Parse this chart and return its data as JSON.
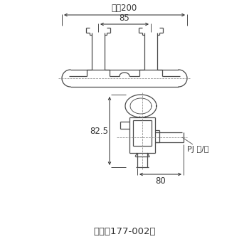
{
  "bg_color": "#ffffff",
  "line_color": "#4a4a4a",
  "dim_color": "#333333",
  "title": "（図は177-002）",
  "title_fontsize": 9.5,
  "dim_label_200": "最大200",
  "dim_label_85": "85",
  "dim_label_825": "82.5",
  "dim_label_80": "80",
  "dim_label_pj": "PJ １/２",
  "label_fontsize": 8.5
}
